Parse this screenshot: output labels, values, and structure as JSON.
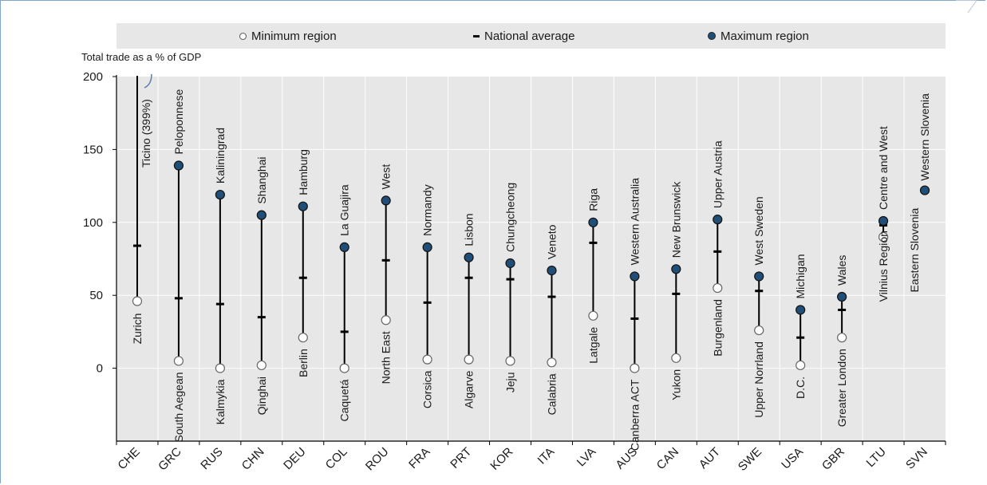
{
  "legend": {
    "min_label": "Minimum region",
    "avg_label": "National average",
    "max_label": "Maximum region"
  },
  "colors": {
    "plot_bg": "#e7e7e7",
    "max_marker": "#1f4e79",
    "min_marker": "#ffffff",
    "line": "#000000",
    "grid": "#ffffff",
    "frame": "#7fa6c9"
  },
  "chart_data": {
    "type": "range",
    "ylabel": "Total trade as a % of GDP",
    "ylim": [
      -50,
      200
    ],
    "yticks": [
      0,
      50,
      100,
      150,
      200
    ],
    "categories": [
      "CHE",
      "GRC",
      "RUS",
      "CHN",
      "DEU",
      "COL",
      "ROU",
      "FRA",
      "PRT",
      "KOR",
      "ITA",
      "LVA",
      "AUS",
      "CAN",
      "AUT",
      "SWE",
      "USA",
      "GBR",
      "LTU",
      "SVN"
    ],
    "series": [
      {
        "name": "Minimum region",
        "values": [
          46,
          5,
          0,
          2,
          21,
          0,
          33,
          6,
          6,
          5,
          4,
          36,
          0,
          7,
          55,
          26,
          2,
          21,
          90,
          null
        ]
      },
      {
        "name": "National average",
        "values": [
          84,
          48,
          44,
          35,
          62,
          25,
          74,
          45,
          62,
          61,
          49,
          86,
          34,
          51,
          80,
          53,
          21,
          40,
          98,
          null
        ]
      },
      {
        "name": "Maximum region",
        "values": [
          399,
          139,
          119,
          105,
          111,
          83,
          115,
          83,
          76,
          72,
          67,
          100,
          63,
          68,
          102,
          63,
          40,
          49,
          101,
          122
        ]
      }
    ],
    "min_regions": [
      "Zurich",
      "South Aegean",
      "Kalmykia",
      "Qinghai",
      "Berlin",
      "Caquetá",
      "North East",
      "Corsica",
      "Algarve",
      "Jeju",
      "Calabria",
      "Latgale",
      "Canberra ACT",
      "Yukon",
      "Burgenland",
      "Upper Norrland",
      "D.C.",
      "Greater London",
      "Vilnius Region",
      "Eastern Slovenia"
    ],
    "max_regions": [
      "Ticino (399%)",
      "Peloponnese",
      "Kaliningrad",
      "Shanghai",
      "Hamburg",
      "La Guajira",
      "West",
      "Normandy",
      "Lisbon",
      "Chungcheong",
      "Veneto",
      "Riga",
      "Western Australia",
      "New Brunswick",
      "Upper Austria",
      "West Sweden",
      "Michigan",
      "Wales",
      "Centre and West",
      "Western Slovenia"
    ],
    "grid": true,
    "legend_position": "top"
  }
}
